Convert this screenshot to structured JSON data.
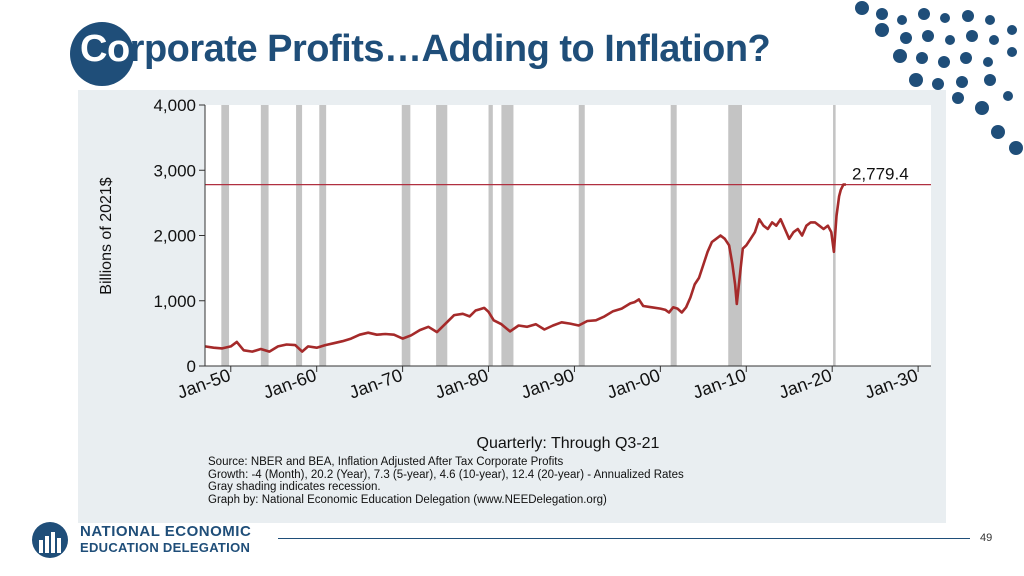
{
  "slide": {
    "title_part1": "Co",
    "title_part2": "rporate Profits…Adding to Inflation?",
    "page_number": "49"
  },
  "footer": {
    "org_line1": "NATIONAL ECONOMIC",
    "org_line2": "EDUCATION DELEGATION"
  },
  "colors": {
    "brand_blue": "#1f4e79",
    "series": "#a52a2a",
    "reference_line": "#b03040",
    "recession": "#c4c4c4",
    "panel": "#e9eef1",
    "plot_bg": "#ffffff"
  },
  "caption": {
    "source": "Source: NBER and BEA, Inflation Adjusted After Tax Corporate Profits",
    "growth": "Growth: -4 (Month), 20.2 (Year), 7.3 (5-year), 4.6 (10-year), 12.4 (20-year) - Annualized Rates",
    "shading": "Gray shading indicates recession.",
    "graph_by": "Graph by: National Economic Education Delegation (www.NEEDelegation.org)"
  },
  "chart_data": {
    "type": "line",
    "title": "",
    "xlabel": "Quarterly: Through Q3-21",
    "ylabel": "Billions of 2021$",
    "xlim": [
      1947.0,
      2031.5
    ],
    "ylim": [
      0,
      4000
    ],
    "x_ticks": [
      1950,
      1960,
      1970,
      1980,
      1990,
      2000,
      2010,
      2020,
      2030
    ],
    "x_tick_labels": [
      "Jan-50",
      "Jan-60",
      "Jan-70",
      "Jan-80",
      "Jan-90",
      "Jan-00",
      "Jan-10",
      "Jan-20",
      "Jan-30"
    ],
    "y_ticks": [
      0,
      1000,
      2000,
      3000,
      4000
    ],
    "y_tick_labels": [
      "0",
      "1,000",
      "2,000",
      "3,000",
      "4,000"
    ],
    "reference_line": {
      "y": 2779.4,
      "label": "2,779.4"
    },
    "recessions": [
      [
        1948.9,
        1949.8
      ],
      [
        1953.5,
        1954.4
      ],
      [
        1957.6,
        1958.3
      ],
      [
        1960.3,
        1961.1
      ],
      [
        1969.9,
        1970.9
      ],
      [
        1973.9,
        1975.2
      ],
      [
        1980.0,
        1980.5
      ],
      [
        1981.5,
        1982.9
      ],
      [
        1990.5,
        1991.2
      ],
      [
        2001.2,
        2001.9
      ],
      [
        2007.9,
        2009.5
      ],
      [
        2020.1,
        2020.4
      ]
    ],
    "series": [
      {
        "name": "Inflation Adjusted After Tax Corporate Profits",
        "x": [
          1947.0,
          1948.0,
          1949.0,
          1950.0,
          1950.7,
          1951.5,
          1952.5,
          1953.5,
          1954.5,
          1955.5,
          1956.5,
          1957.5,
          1958.3,
          1959.0,
          1960.0,
          1961.0,
          1962.0,
          1963.0,
          1964.0,
          1965.0,
          1966.0,
          1967.0,
          1968.0,
          1969.0,
          1970.0,
          1971.0,
          1972.0,
          1973.0,
          1974.0,
          1975.0,
          1976.0,
          1977.0,
          1977.8,
          1978.5,
          1979.0,
          1979.5,
          1980.0,
          1980.6,
          1981.5,
          1982.5,
          1983.5,
          1984.5,
          1985.5,
          1986.5,
          1987.5,
          1988.5,
          1989.5,
          1990.5,
          1991.5,
          1992.5,
          1993.5,
          1994.5,
          1995.5,
          1996.5,
          1997.0,
          1997.5,
          1998.0,
          1999.0,
          2000.0,
          2000.6,
          2001.0,
          2001.5,
          2002.0,
          2002.5,
          2003.0,
          2003.5,
          2004.0,
          2004.5,
          2005.0,
          2005.5,
          2006.0,
          2006.5,
          2007.0,
          2007.5,
          2008.0,
          2008.4,
          2008.7,
          2008.9,
          2009.3,
          2009.6,
          2010.0,
          2010.5,
          2011.0,
          2011.5,
          2012.0,
          2012.5,
          2013.0,
          2013.5,
          2014.0,
          2014.5,
          2015.0,
          2015.5,
          2016.0,
          2016.5,
          2017.0,
          2017.5,
          2018.0,
          2018.5,
          2019.0,
          2019.5,
          2019.9,
          2020.2,
          2020.5,
          2020.8,
          2021.0,
          2021.3,
          2021.6
        ],
        "values": [
          300,
          280,
          270,
          300,
          370,
          240,
          220,
          260,
          220,
          300,
          330,
          320,
          220,
          300,
          280,
          320,
          350,
          380,
          420,
          480,
          510,
          480,
          490,
          480,
          420,
          470,
          550,
          600,
          520,
          650,
          780,
          800,
          760,
          850,
          870,
          890,
          830,
          700,
          640,
          530,
          620,
          600,
          640,
          560,
          620,
          670,
          650,
          620,
          690,
          700,
          760,
          840,
          880,
          960,
          980,
          1020,
          920,
          900,
          880,
          860,
          820,
          900,
          880,
          820,
          900,
          1050,
          1250,
          1350,
          1550,
          1750,
          1900,
          1950,
          2000,
          1950,
          1850,
          1550,
          1250,
          950,
          1450,
          1800,
          1850,
          1950,
          2050,
          2250,
          2150,
          2100,
          2200,
          2150,
          2250,
          2100,
          1950,
          2050,
          2100,
          2000,
          2150,
          2200,
          2200,
          2150,
          2100,
          2150,
          2050,
          1750,
          2300,
          2600,
          2700,
          2780,
          2779.4
        ]
      }
    ]
  }
}
